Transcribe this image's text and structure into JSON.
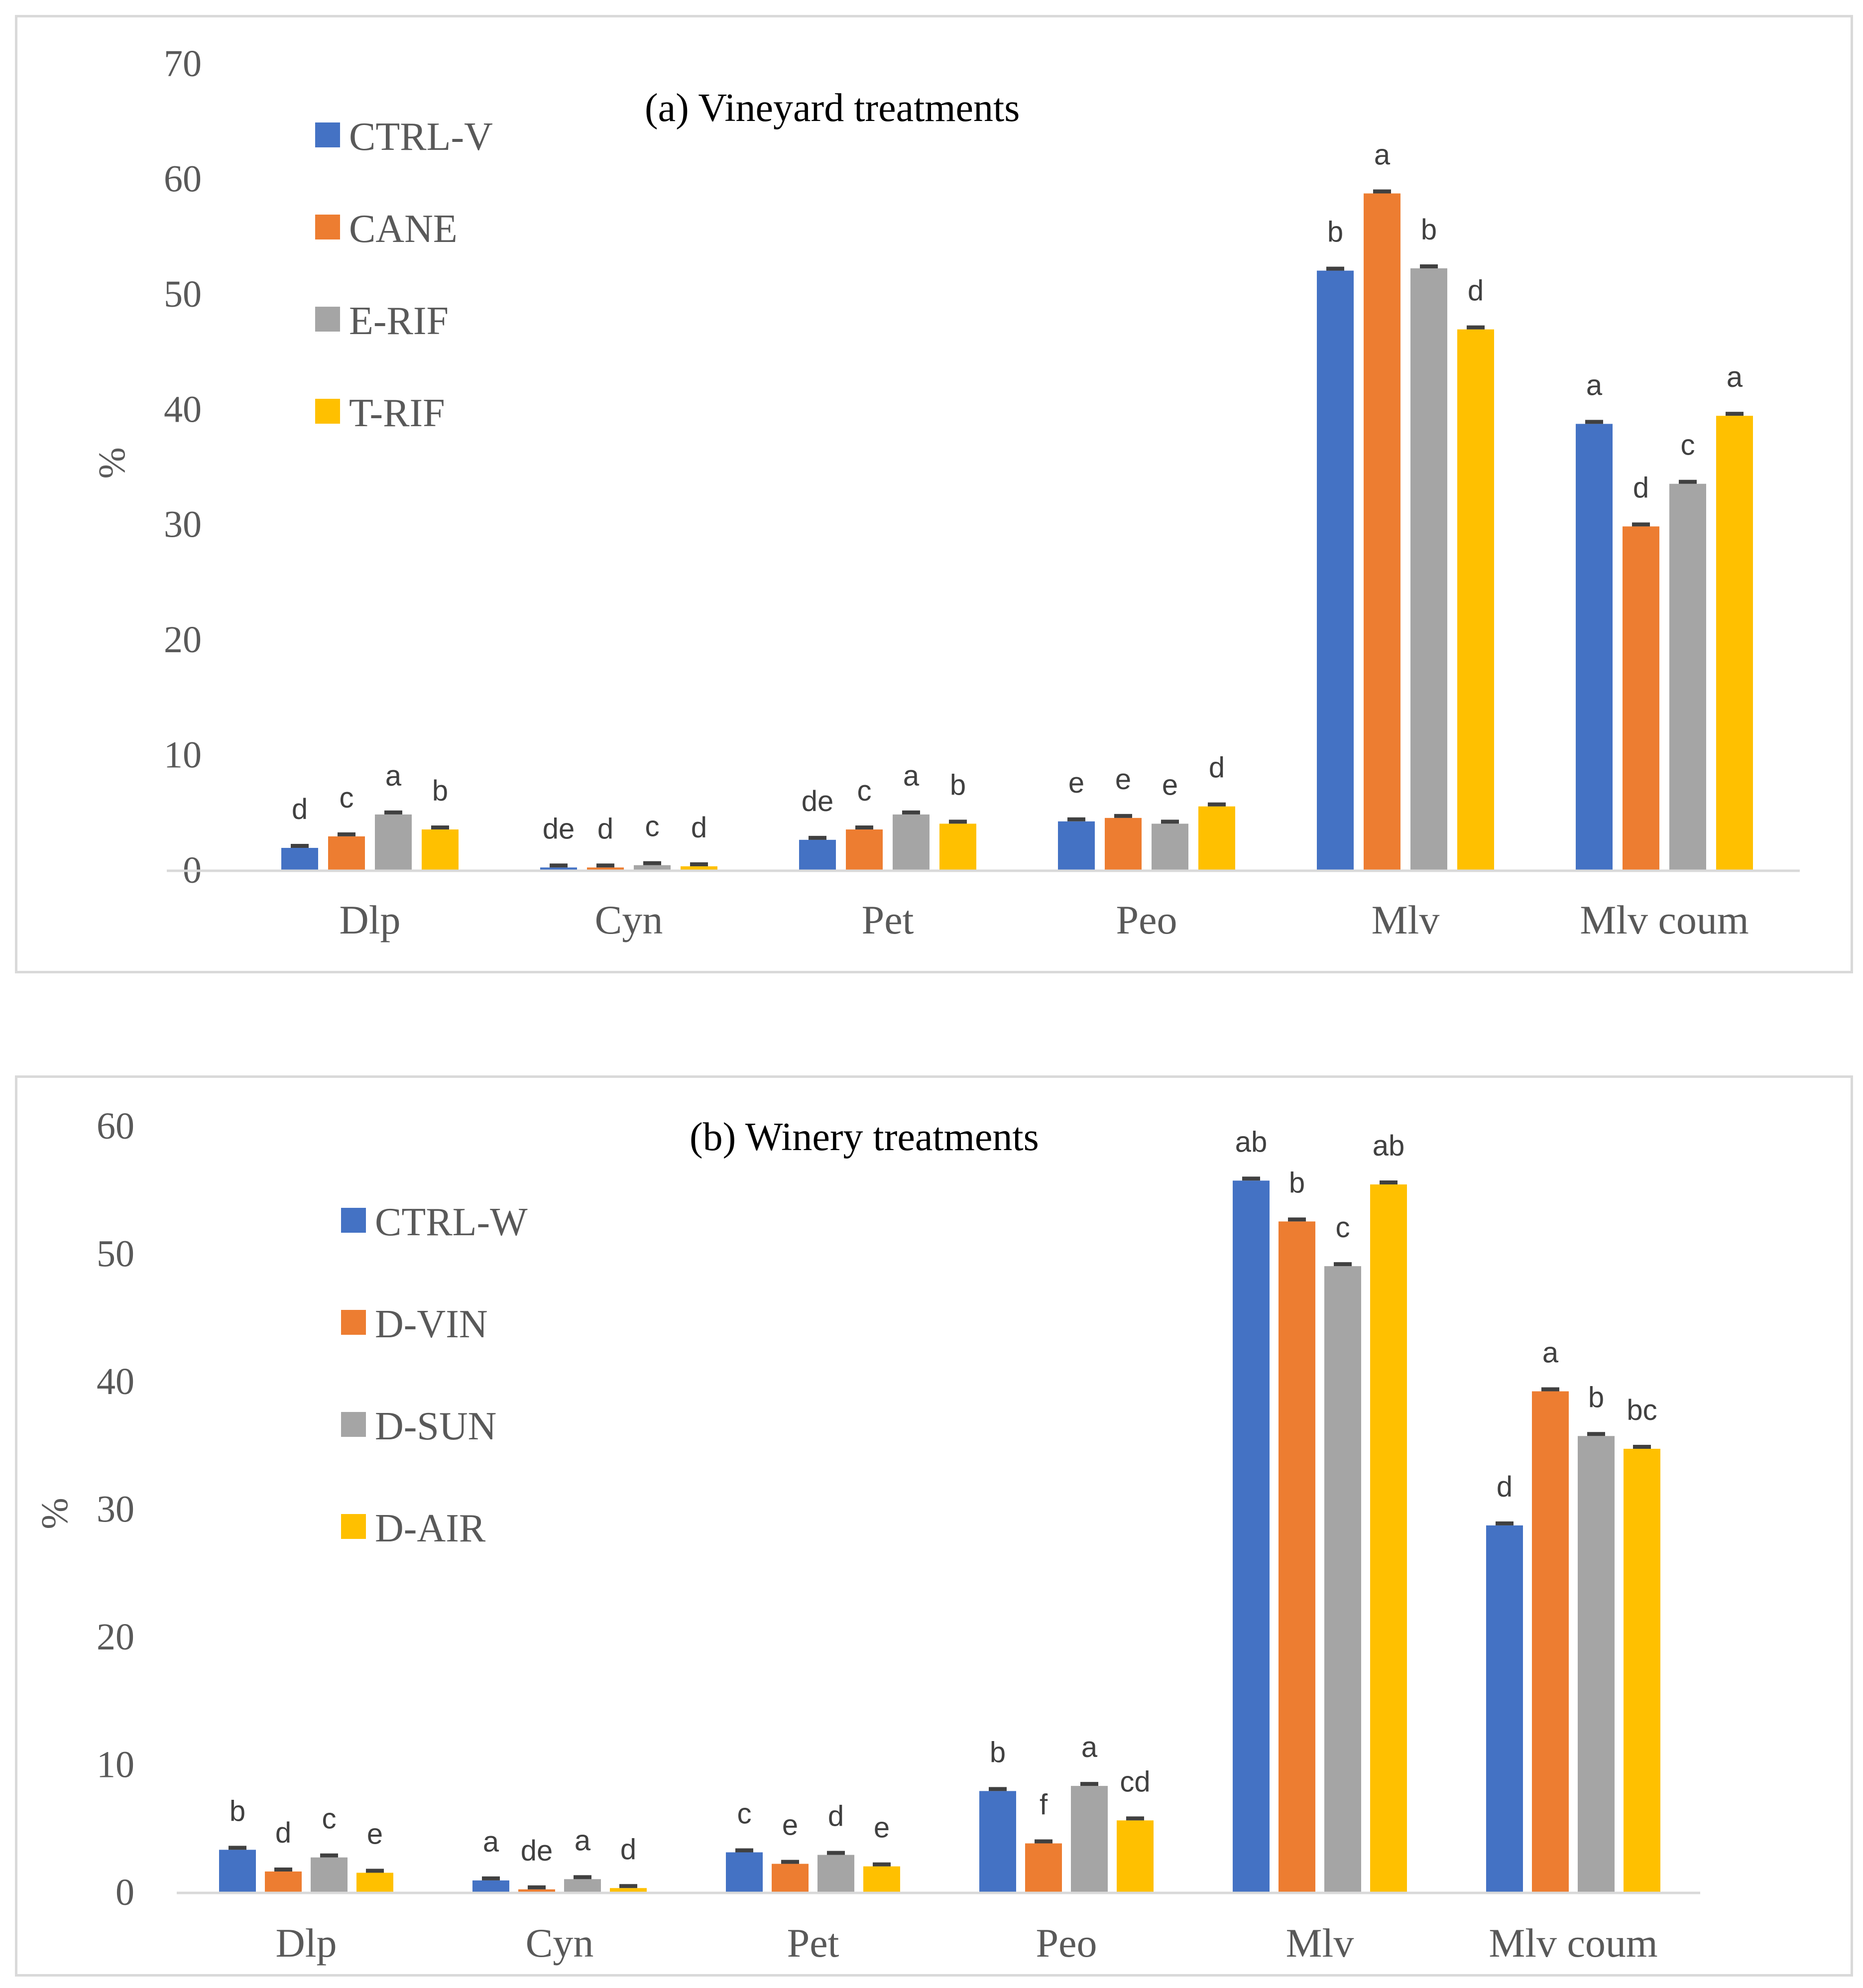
{
  "chart_data": [
    {
      "id": "a",
      "type": "bar",
      "title": "(a) Vineyard treatments",
      "ylabel": "%",
      "xlabel": "",
      "ylim": [
        0,
        70
      ],
      "yticks": [
        0,
        10,
        20,
        30,
        40,
        50,
        60,
        70
      ],
      "grid": false,
      "legend_position": "top-left",
      "categories": [
        "Dlp",
        "Cyn",
        "Pet",
        "Peo",
        "Mlv",
        "Mlv coum"
      ],
      "series": [
        {
          "name": "CTRL-V",
          "color": "#4472C4",
          "values": [
            1.9,
            0.2,
            2.6,
            4.2,
            52.0,
            38.7
          ],
          "labels": [
            "d",
            "de",
            "de",
            "e",
            "b",
            "a"
          ]
        },
        {
          "name": "CANE",
          "color": "#ED7D31",
          "values": [
            2.9,
            0.2,
            3.5,
            4.5,
            58.7,
            29.8
          ],
          "labels": [
            "c",
            "d",
            "c",
            "e",
            "a",
            "d"
          ]
        },
        {
          "name": "E-RIF",
          "color": "#A5A5A5",
          "values": [
            4.8,
            0.4,
            4.8,
            4.0,
            52.2,
            33.5
          ],
          "labels": [
            "a",
            "c",
            "a",
            "e",
            "b",
            "c"
          ]
        },
        {
          "name": "T-RIF",
          "color": "#FFC000",
          "values": [
            3.5,
            0.3,
            4.0,
            5.5,
            46.9,
            39.4
          ],
          "labels": [
            "b",
            "d",
            "b",
            "d",
            "d",
            "a"
          ]
        }
      ]
    },
    {
      "id": "b",
      "type": "bar",
      "title": "(b) Winery treatments",
      "ylabel": "%",
      "xlabel": "",
      "ylim": [
        0,
        60
      ],
      "yticks": [
        0,
        10,
        20,
        30,
        40,
        50,
        60
      ],
      "grid": false,
      "legend_position": "top-left",
      "categories": [
        "Dlp",
        "Cyn",
        "Pet",
        "Peo",
        "Mlv",
        "Mlv coum"
      ],
      "series": [
        {
          "name": "CTRL-W",
          "color": "#4472C4",
          "values": [
            3.3,
            0.9,
            3.1,
            7.9,
            55.7,
            28.7
          ],
          "labels": [
            "b",
            "a",
            "c",
            "b",
            "ab",
            "d"
          ]
        },
        {
          "name": "D-VIN",
          "color": "#ED7D31",
          "values": [
            1.6,
            0.2,
            2.2,
            3.8,
            52.5,
            39.2
          ],
          "labels": [
            "d",
            "de",
            "e",
            "f",
            "b",
            "a"
          ]
        },
        {
          "name": "D-SUN",
          "color": "#A5A5A5",
          "values": [
            2.7,
            1.0,
            2.9,
            8.3,
            49.0,
            35.7
          ],
          "labels": [
            "c",
            "a",
            "d",
            "a",
            "c",
            "b"
          ]
        },
        {
          "name": "D-AIR",
          "color": "#FFC000",
          "values": [
            1.5,
            0.3,
            2.0,
            5.6,
            55.4,
            34.7
          ],
          "labels": [
            "e",
            "d",
            "e",
            "cd",
            "ab",
            "bc"
          ]
        }
      ]
    }
  ]
}
